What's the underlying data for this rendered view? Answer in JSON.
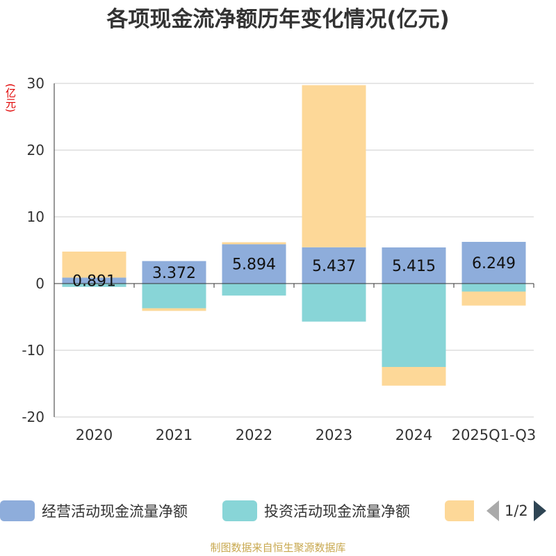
{
  "title": "各项现金流净额历年变化情况(亿元)",
  "unit_label": "(亿元)",
  "source": "制图数据来自恒生聚源数据库",
  "legend": {
    "items": [
      {
        "label": "经营活动现金流量净额",
        "color": "#8eaddb"
      },
      {
        "label": "投资活动现金流量净额",
        "color": "#88d5d7"
      },
      {
        "label": "",
        "color": "#fdd898"
      }
    ],
    "page_text": "1/2"
  },
  "chart_data": {
    "type": "bar",
    "stacked": true,
    "categories": [
      "2020",
      "2021",
      "2022",
      "2023",
      "2024",
      "2025Q1-Q3"
    ],
    "series": [
      {
        "name": "经营活动现金流量净额",
        "color": "#8eaddb",
        "values": [
          0.891,
          3.372,
          5.894,
          5.437,
          5.415,
          6.249
        ],
        "show_labels": true
      },
      {
        "name": "投资活动现金流量净额",
        "color": "#88d5d7",
        "values": [
          -0.5,
          -3.7,
          -1.8,
          -5.7,
          -12.5,
          -1.2
        ],
        "show_labels": false
      },
      {
        "name": "",
        "color": "#fdd898",
        "values": [
          3.9,
          -0.4,
          0.3,
          24.3,
          -2.8,
          -2.1
        ],
        "show_labels": false
      }
    ],
    "y_axis": {
      "min": -20,
      "max": 30,
      "ticks": [
        30,
        20,
        10,
        0,
        -10,
        -20
      ]
    },
    "xlabel": "",
    "ylabel": "(亿元)",
    "grid": true
  }
}
